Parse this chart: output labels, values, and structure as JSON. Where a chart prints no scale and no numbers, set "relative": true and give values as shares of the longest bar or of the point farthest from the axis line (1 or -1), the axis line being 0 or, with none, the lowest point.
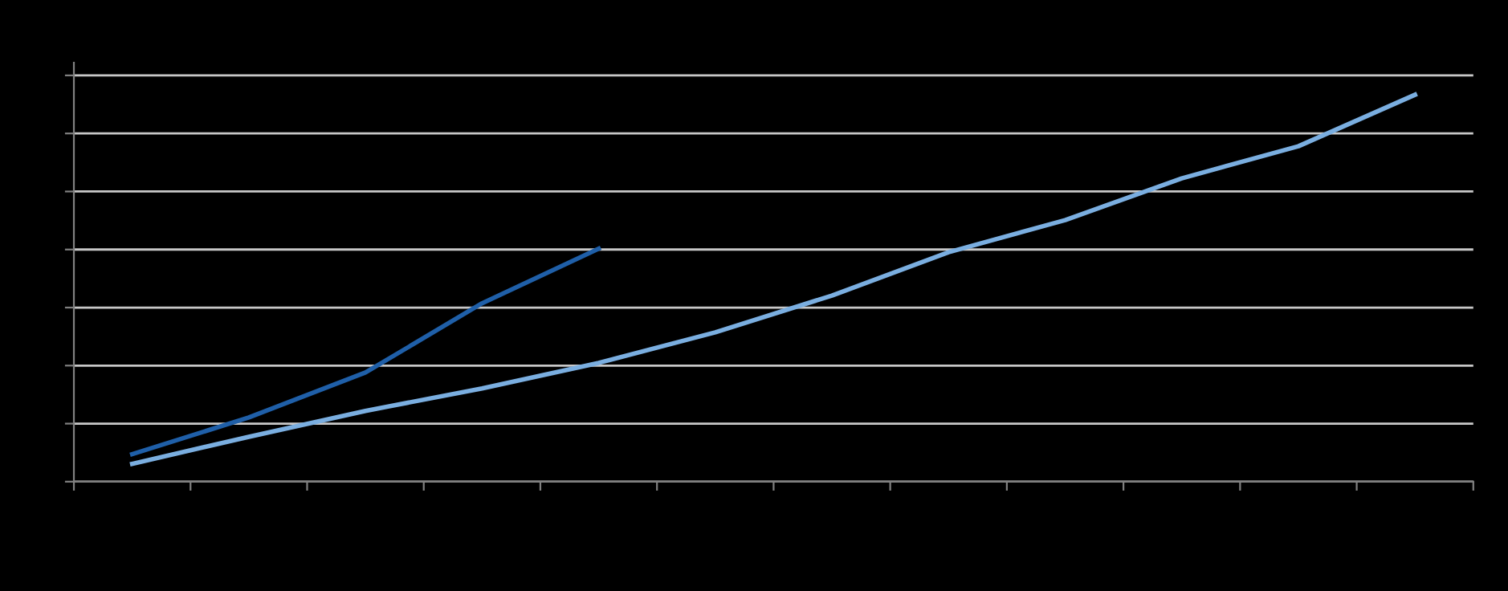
{
  "chart_data": {
    "type": "line",
    "relative": true,
    "grid": "y",
    "categories": [
      null,
      null,
      null,
      null,
      null,
      null,
      null,
      null,
      null,
      null,
      null,
      null
    ],
    "series": [
      {
        "color": "#7aaee0",
        "values": [
          0.046,
          0.116,
          0.183,
          0.241,
          0.307,
          0.386,
          0.481,
          0.593,
          0.676,
          0.784,
          0.867,
          1
        ]
      },
      {
        "color": "#1f5fa8",
        "values": [
          0.071,
          0.166,
          0.282,
          0.461,
          0.602,
          null,
          null,
          null,
          null,
          null,
          null,
          null
        ]
      }
    ]
  }
}
